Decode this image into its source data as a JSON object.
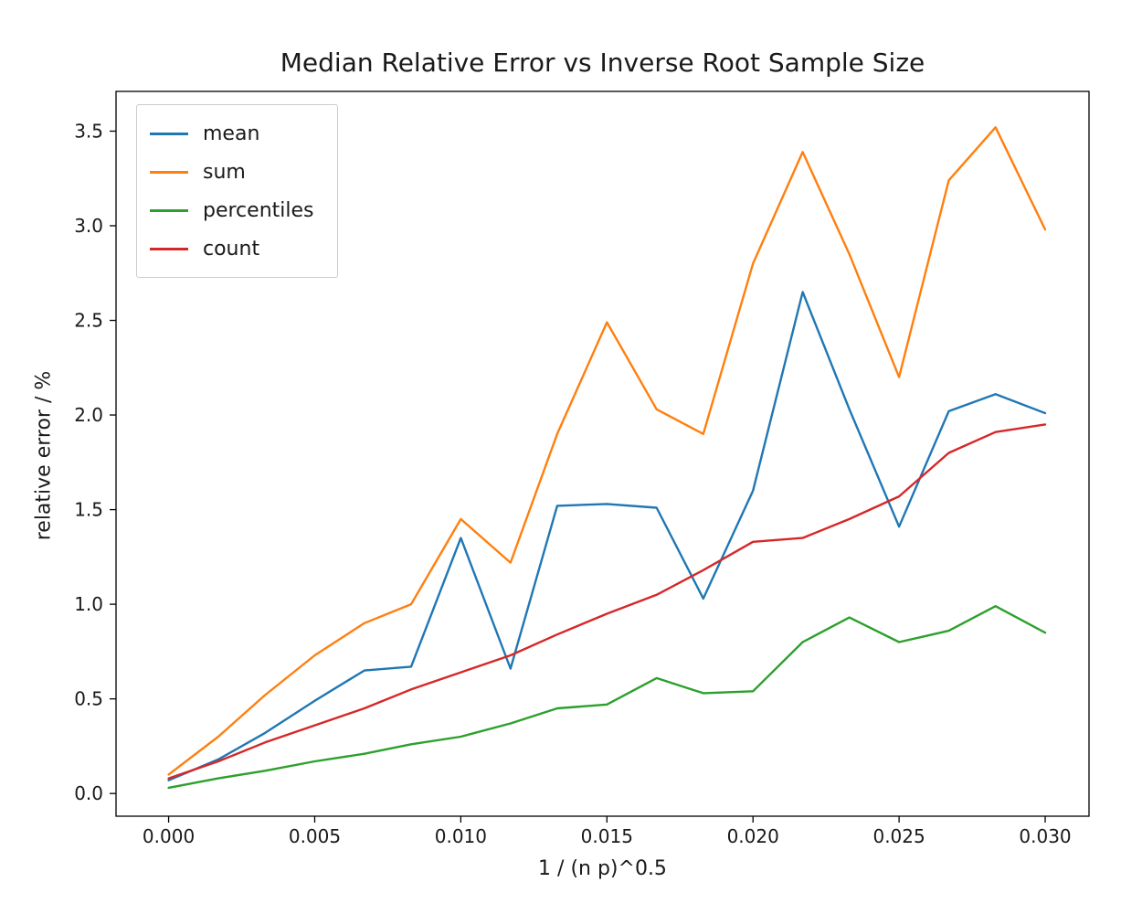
{
  "chart_data": {
    "type": "line",
    "title": "Median Relative Error vs Inverse Root Sample Size",
    "xlabel": "1 / (n p)^0.5",
    "ylabel": "relative error / %",
    "xlim": [
      -0.0018,
      0.0315
    ],
    "ylim": [
      -0.12,
      3.71
    ],
    "grid": false,
    "legend_position": "upper left",
    "xtick_values": [
      0.0,
      0.005,
      0.01,
      0.015,
      0.02,
      0.025,
      0.03
    ],
    "xtick_labels": [
      "0.000",
      "0.005",
      "0.010",
      "0.015",
      "0.020",
      "0.025",
      "0.030"
    ],
    "ytick_values": [
      0.0,
      0.5,
      1.0,
      1.5,
      2.0,
      2.5,
      3.0,
      3.5
    ],
    "ytick_labels": [
      "0.0",
      "0.5",
      "1.0",
      "1.5",
      "2.0",
      "2.5",
      "3.0",
      "3.5"
    ],
    "x": [
      0.0,
      0.0017,
      0.0033,
      0.005,
      0.0067,
      0.0083,
      0.01,
      0.0117,
      0.0133,
      0.015,
      0.0167,
      0.0183,
      0.02,
      0.0217,
      0.0233,
      0.025,
      0.0267,
      0.0283,
      0.03
    ],
    "series": [
      {
        "name": "mean",
        "color": "#1f77b4",
        "values": [
          0.07,
          0.18,
          0.32,
          0.49,
          0.65,
          0.67,
          1.35,
          0.66,
          1.52,
          1.53,
          1.51,
          1.03,
          1.6,
          2.65,
          2.03,
          1.41,
          2.02,
          2.11,
          2.01
        ]
      },
      {
        "name": "sum",
        "color": "#ff7f0e",
        "values": [
          0.1,
          0.3,
          0.52,
          0.73,
          0.9,
          1.0,
          1.45,
          1.22,
          1.9,
          2.49,
          2.03,
          1.9,
          2.8,
          3.39,
          2.85,
          2.2,
          3.24,
          3.52,
          2.98
        ]
      },
      {
        "name": "percentiles",
        "color": "#2ca02c",
        "values": [
          0.03,
          0.08,
          0.12,
          0.17,
          0.21,
          0.26,
          0.3,
          0.37,
          0.45,
          0.47,
          0.61,
          0.53,
          0.54,
          0.8,
          0.93,
          0.8,
          0.86,
          0.99,
          0.85
        ]
      },
      {
        "name": "count",
        "color": "#d62728",
        "values": [
          0.08,
          0.17,
          0.27,
          0.36,
          0.45,
          0.55,
          0.64,
          0.73,
          0.84,
          0.95,
          1.05,
          1.18,
          1.33,
          1.35,
          1.45,
          1.57,
          1.8,
          1.91,
          1.95
        ]
      }
    ]
  }
}
